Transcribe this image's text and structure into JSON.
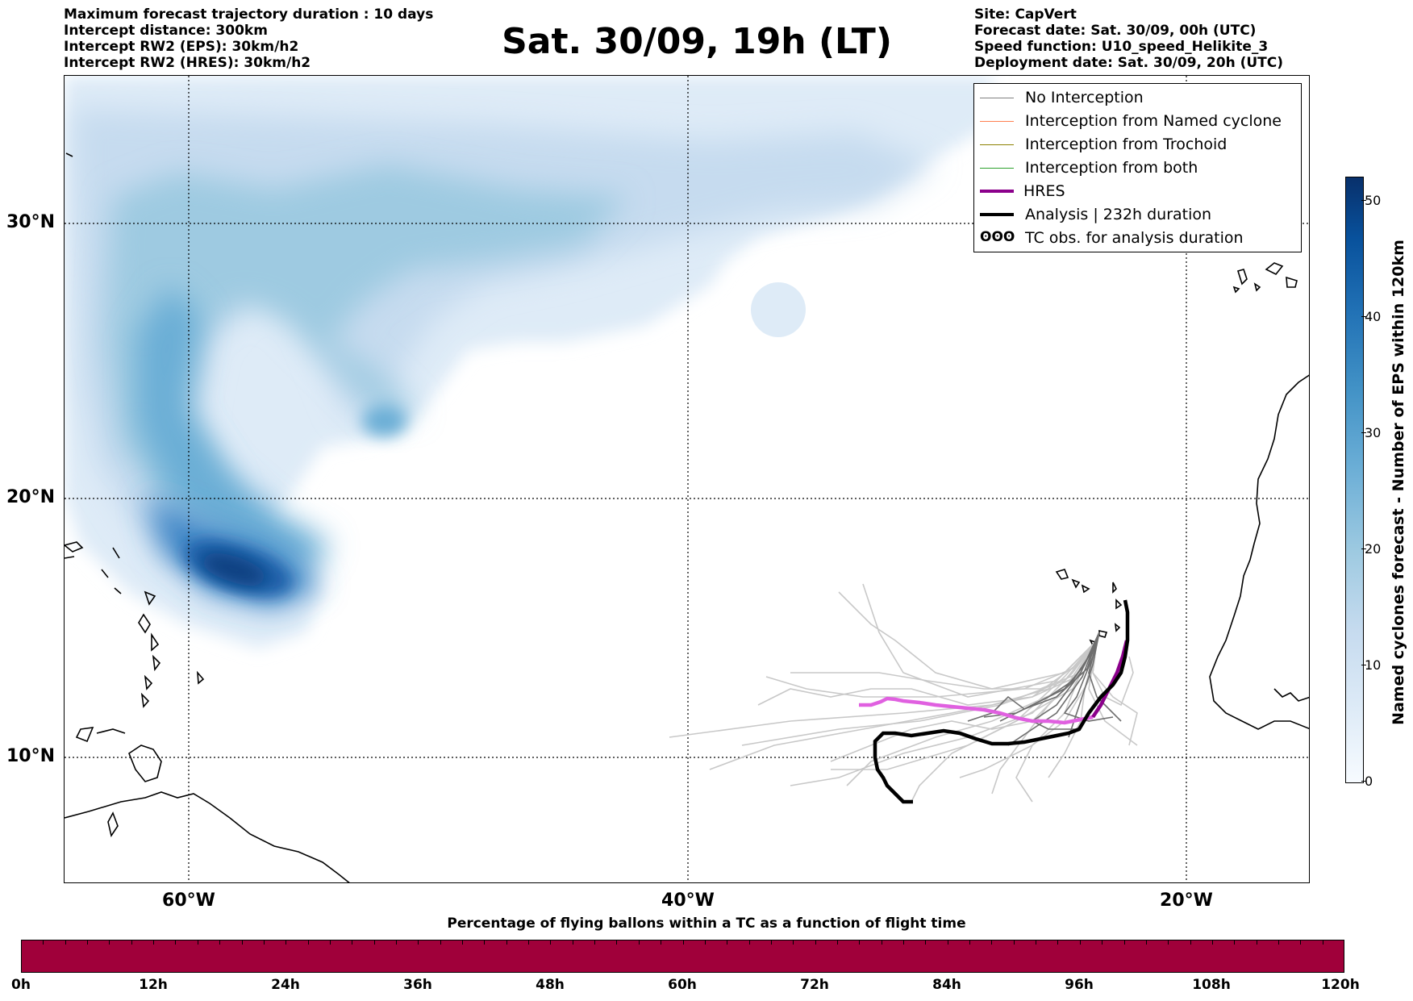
{
  "header": {
    "left_lines": [
      "Maximum forecast trajectory duration : 10 days",
      "Intercept distance: 300km",
      "Intercept RW2 (EPS):  30km/h2",
      "Intercept RW2 (HRES): 30km/h2"
    ],
    "title": "Sat. 30/09, 19h (LT)",
    "right_lines": [
      "Site: CapVert",
      "Forecast date: Sat. 30/09, 00h (UTC)",
      "Speed function: U10_speed_Helikite_3",
      "Deployment date: Sat. 30/09, 20h (UTC)"
    ]
  },
  "map": {
    "lat_labels": [
      "30°N",
      "20°N",
      "10°N"
    ],
    "lon_labels": [
      "60°W",
      "40°W",
      "20°W"
    ],
    "colors": {
      "grid": "#000000",
      "coast": "#000000",
      "ensemble_no_interception": "#bdbdbd",
      "ensemble_dark": "#707070",
      "hres": "#e060e0",
      "hres_dark": "#8b008b",
      "analysis": "#000000"
    }
  },
  "legend": {
    "items": [
      {
        "label": "No Interception",
        "color": "#808080"
      },
      {
        "label": "Interception from Named cyclone",
        "color": "#ff7f50"
      },
      {
        "label": "Interception from Trochoid",
        "color": "#8b8000"
      },
      {
        "label": "Interception from both",
        "color": "#2ca02c"
      },
      {
        "label": "HRES",
        "color": "#8b008b"
      },
      {
        "label": "Analysis | 232h duration",
        "color": "#000000"
      },
      {
        "label": "TC obs. for analysis duration",
        "color": "#000000",
        "symbol": "ʘʘʘ"
      }
    ]
  },
  "colorbar": {
    "label": "Named cyclones forecast - Number of EPS within 120km",
    "ticks": [
      "0",
      "10",
      "20",
      "30",
      "40",
      "50"
    ],
    "range": [
      0,
      52
    ]
  },
  "flight_bar": {
    "title": "Percentage of flying ballons within a TC as a function of flight time",
    "ticks": [
      "0h",
      "12h",
      "24h",
      "36h",
      "48h",
      "60h",
      "72h",
      "84h",
      "96h",
      "108h",
      "120h"
    ],
    "color": "#a0003a"
  }
}
